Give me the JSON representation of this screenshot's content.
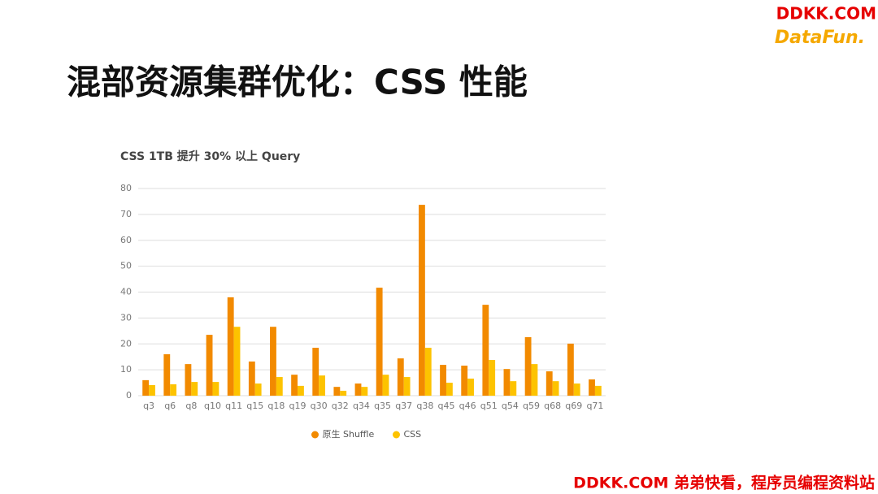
{
  "slide_title": "混部资源集群优化：CSS 性能",
  "watermark": "DDKK.COM",
  "logo": "DataFun.",
  "footer": "DDKK.COM 弟弟快看，程序员编程资料站",
  "chart_data": {
    "type": "bar",
    "title": "CSS 1TB 提升 30% 以上 Query",
    "categories": [
      "q3",
      "q6",
      "q8",
      "q10",
      "q11",
      "q15",
      "q18",
      "q19",
      "q30",
      "q32",
      "q34",
      "q35",
      "q37",
      "q38",
      "q45",
      "q46",
      "q51",
      "q54",
      "q59",
      "q68",
      "q69",
      "q71"
    ],
    "series": [
      {
        "name": "原生 Shuffle",
        "color": "#f28a00",
        "values": [
          6,
          16,
          12.2,
          23.5,
          38,
          13.2,
          26.6,
          8.1,
          18.5,
          3.4,
          4.7,
          41.7,
          14.4,
          73.7,
          11.9,
          11.6,
          35.1,
          10.3,
          22.6,
          9.4,
          20.1,
          6.3
        ]
      },
      {
        "name": "CSS",
        "color": "#fdc300",
        "values": [
          4.1,
          4.4,
          5.3,
          5.3,
          26.6,
          4.7,
          7.2,
          3.8,
          7.8,
          1.9,
          3.4,
          8.1,
          7.2,
          18.5,
          5,
          6.6,
          13.8,
          5.6,
          12.2,
          5.6,
          4.7,
          3.8
        ]
      }
    ],
    "ylim": [
      0,
      80
    ],
    "yticks": [
      0,
      10,
      20,
      30,
      40,
      50,
      60,
      70,
      80
    ],
    "grid": true,
    "legend": "bottom"
  }
}
